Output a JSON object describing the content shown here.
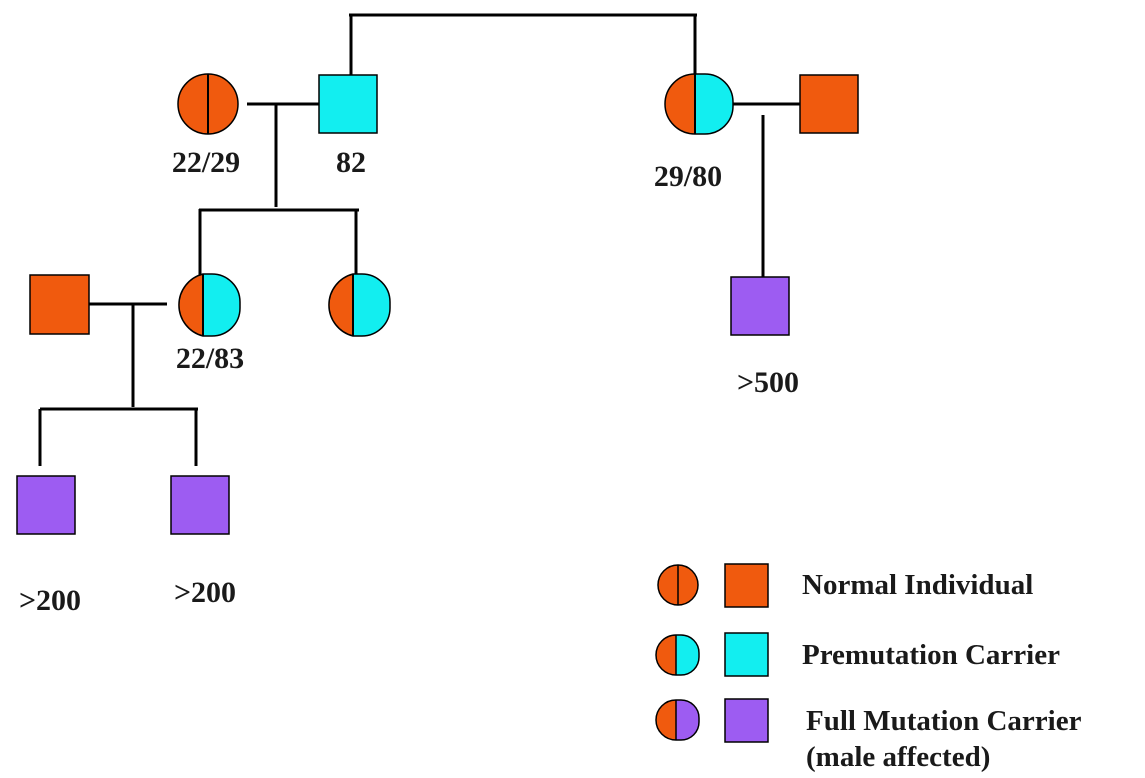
{
  "colors": {
    "normal": "#f05a0e",
    "premutation": "#12eef0",
    "full_mutation": "#9d5cf2",
    "line": "#000000",
    "text": "#1a1a1a"
  },
  "pedigree": {
    "gen1_left_mother": {
      "label": "22/29",
      "sex": "female",
      "status": "normal"
    },
    "gen1_left_father": {
      "label": "82",
      "sex": "male",
      "status": "premutation"
    },
    "gen1_right_mother": {
      "label": "29/80",
      "sex": "female",
      "status": "premutation-carrier-female"
    },
    "gen1_right_father": {
      "label": "",
      "sex": "male",
      "status": "normal"
    },
    "gen2_spouse": {
      "label": "",
      "sex": "male",
      "status": "normal"
    },
    "gen2_daughter1": {
      "label": "22/83",
      "sex": "female",
      "status": "premutation-carrier-female"
    },
    "gen2_daughter2": {
      "label": "",
      "sex": "female",
      "status": "premutation-carrier-female"
    },
    "gen2_right_son": {
      "label": ">500",
      "sex": "male",
      "status": "full-mutation"
    },
    "gen3_son1": {
      "label": ">200",
      "sex": "male",
      "status": "full-mutation"
    },
    "gen3_son2": {
      "label": ">200",
      "sex": "male",
      "status": "full-mutation"
    }
  },
  "legend": [
    {
      "label": "Normal Individual",
      "status": "normal"
    },
    {
      "label": "Premutation Carrier",
      "status": "premutation"
    },
    {
      "label": "Full Mutation Carrier",
      "sublabel": "(male affected)",
      "status": "full-mutation"
    }
  ]
}
